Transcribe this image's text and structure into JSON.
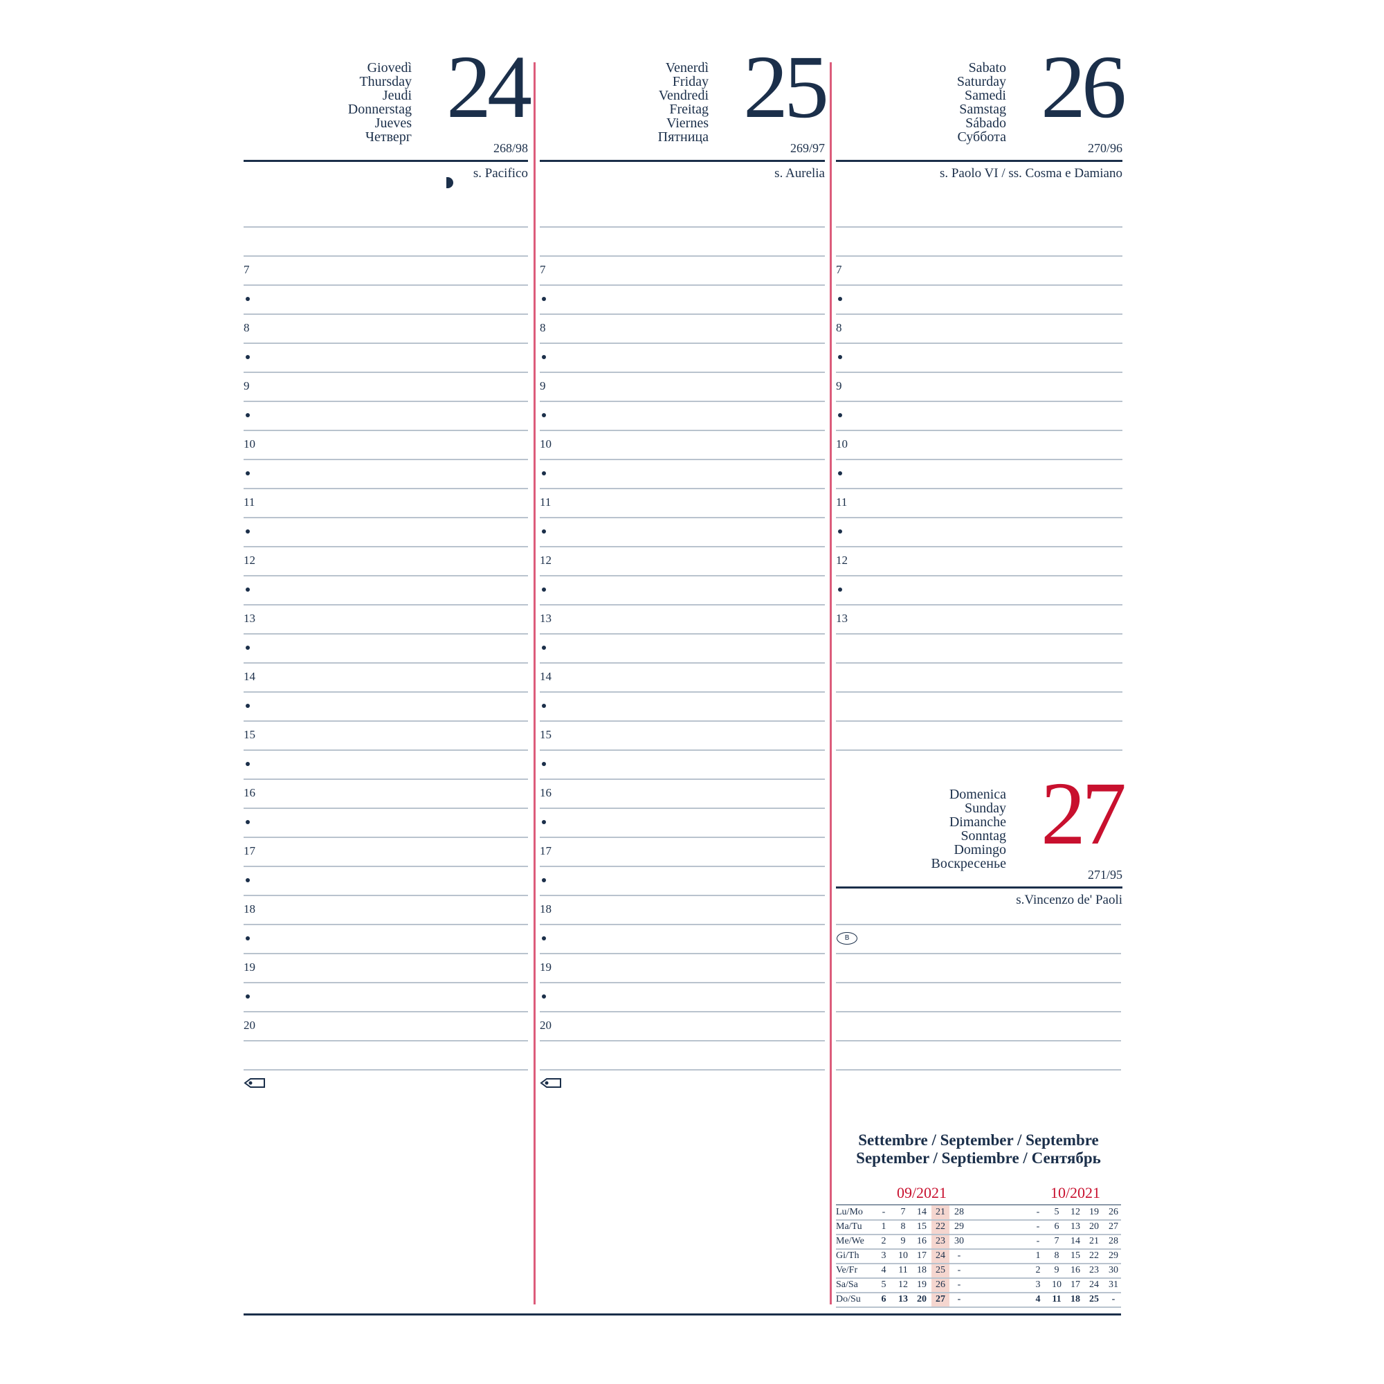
{
  "colors": {
    "navy": "#1b2f4a",
    "red": "#c8102e",
    "divider": "#dc5c7b",
    "highlight": "#f5d6cf"
  },
  "days": [
    {
      "number": "24",
      "names": [
        "Giovedì",
        "Thursday",
        "Jeudi",
        "Donnerstag",
        "Jueves",
        "Четверг"
      ],
      "day_of_year": "268/98",
      "saint": "s. Pacifico",
      "moon_icon": "moon-phase-icon",
      "color": "navy"
    },
    {
      "number": "25",
      "names": [
        "Venerdì",
        "Friday",
        "Vendredi",
        "Freitag",
        "Viernes",
        "Пятница"
      ],
      "day_of_year": "269/97",
      "saint": "s. Aurelia",
      "color": "navy"
    },
    {
      "number": "26",
      "names": [
        "Sabato",
        "Saturday",
        "Samedi",
        "Samstag",
        "Sábado",
        "Суббота"
      ],
      "day_of_year": "270/96",
      "saint": "s. Paolo VI / ss. Cosma e Damiano",
      "color": "navy"
    },
    {
      "number": "27",
      "names": [
        "Domenica",
        "Sunday",
        "Dimanche",
        "Sonntag",
        "Domingo",
        "Воскресенье"
      ],
      "day_of_year": "271/95",
      "saint": "s.Vincenzo de' Paoli",
      "color": "red",
      "icon": "b-badge-icon",
      "icon_text": "B"
    }
  ],
  "hour_rows_weekday": [
    "",
    "7",
    "•",
    "8",
    "•",
    "9",
    "•",
    "10",
    "•",
    "11",
    "•",
    "12",
    "•",
    "13",
    "•",
    "14",
    "•",
    "15",
    "•",
    "16",
    "•",
    "17",
    "•",
    "18",
    "•",
    "19",
    "•",
    "20",
    ""
  ],
  "hour_rows_saturday": [
    "",
    "7",
    "•",
    "8",
    "•",
    "9",
    "•",
    "10",
    "•",
    "11",
    "•",
    "12",
    "•",
    "13",
    "",
    "",
    "",
    ""
  ],
  "footer_icon": "tag-icon",
  "mini_calendar": {
    "title_lines": [
      "Settembre / September / Septembre",
      "September / Septiembre / Сентябрь"
    ],
    "weekday_labels": [
      "Lu/Mo",
      "Ma/Tu",
      "Me/We",
      "Gi/Th",
      "Ve/Fr",
      "Sa/Sa",
      "Do/Su"
    ],
    "months": [
      {
        "label": "09/2021",
        "rows": [
          [
            "-",
            "7",
            "14",
            "21",
            "28"
          ],
          [
            "1",
            "8",
            "15",
            "22",
            "29"
          ],
          [
            "2",
            "9",
            "16",
            "23",
            "30"
          ],
          [
            "3",
            "10",
            "17",
            "24",
            "-"
          ],
          [
            "4",
            "11",
            "18",
            "25",
            "-"
          ],
          [
            "5",
            "12",
            "19",
            "26",
            "-"
          ],
          [
            "6",
            "13",
            "20",
            "27",
            "-"
          ]
        ],
        "highlight_week_index": 3
      },
      {
        "label": "10/2021",
        "rows": [
          [
            "-",
            "5",
            "12",
            "19",
            "26"
          ],
          [
            "-",
            "6",
            "13",
            "20",
            "27"
          ],
          [
            "-",
            "7",
            "14",
            "21",
            "28"
          ],
          [
            "1",
            "8",
            "15",
            "22",
            "29"
          ],
          [
            "2",
            "9",
            "16",
            "23",
            "30"
          ],
          [
            "3",
            "10",
            "17",
            "24",
            "31"
          ],
          [
            "4",
            "11",
            "18",
            "25",
            "-"
          ]
        ]
      }
    ]
  }
}
